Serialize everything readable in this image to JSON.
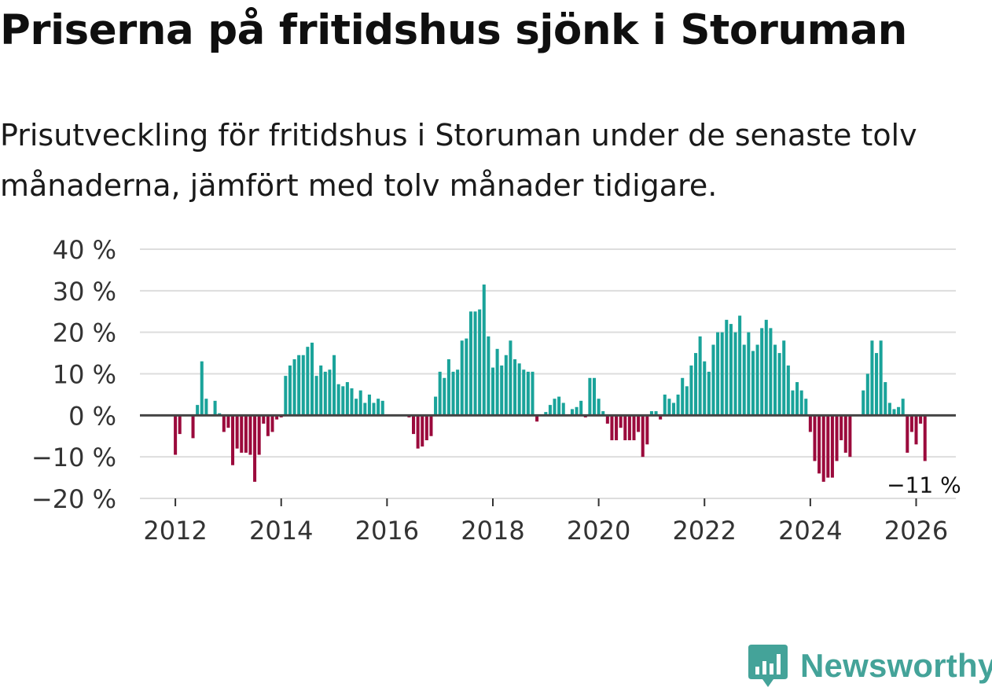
{
  "title": "Priserna på fritidshus sjönk i Storuman",
  "subtitle": "Prisutveckling för fritidshus i Storuman under de senaste tolv månaderna, jämfört med tolv månader tidigare.",
  "brand": {
    "name": "Newsworthy",
    "icon": "newsworthy-logo-icon"
  },
  "colors": {
    "positive": "#1aa39a",
    "negative": "#9b0a3c",
    "grid": "#dddddd",
    "zero_line": "#444444"
  },
  "chart_data": {
    "type": "bar",
    "title": "Priserna på fritidshus sjönk i Storuman",
    "xlabel": "",
    "ylabel": "",
    "ylim": [
      -20,
      40
    ],
    "yticks": [
      -20,
      -10,
      0,
      10,
      20,
      30,
      40
    ],
    "ytick_labels": [
      "−20 %",
      "−10 %",
      "0 %",
      "10 %",
      "20 %",
      "30 %",
      "40 %"
    ],
    "xticks": [
      2012,
      2014,
      2016,
      2018,
      2020,
      2022,
      2024,
      2026
    ],
    "xtick_labels": [
      "2012",
      "2014",
      "2016",
      "2018",
      "2020",
      "2022",
      "2024",
      "2026"
    ],
    "xlim": [
      2011.33,
      2026.75
    ],
    "grid": true,
    "last_value_label": "−11 %",
    "series": [
      {
        "name": "Prisutveckling",
        "start_year": 2012,
        "start_month": 1,
        "values": [
          -9.5,
          -4.5,
          0,
          0,
          -5.5,
          2.5,
          13,
          4,
          0,
          3.5,
          0.5,
          -4,
          -3,
          -12,
          -8,
          -9,
          -9,
          -9.5,
          -16,
          -9.5,
          -2,
          -5,
          -4,
          -1,
          -0.5,
          9.5,
          12,
          13.5,
          14.5,
          14.5,
          16.5,
          17.5,
          9.5,
          12,
          10.5,
          11,
          14.5,
          7.5,
          7,
          8,
          6.5,
          4,
          6,
          3,
          5,
          3,
          4,
          3.5,
          0,
          0,
          0,
          0,
          0,
          -0.5,
          -4.5,
          -8,
          -7.5,
          -6,
          -5,
          4.5,
          10.5,
          9,
          13.5,
          10.5,
          11,
          18,
          18.5,
          25,
          25,
          25.5,
          31.5,
          19,
          11.5,
          16,
          12,
          14.5,
          18,
          13.5,
          12.5,
          11,
          10.5,
          10.5,
          -1.5,
          0,
          0.8,
          2.5,
          4,
          4.5,
          3,
          0,
          1.5,
          2,
          3.5,
          -0.5,
          9,
          9,
          4,
          1,
          -2,
          -6,
          -6,
          -3,
          -6,
          -6,
          -6,
          -4,
          -10,
          -7,
          1,
          1,
          -1,
          5,
          4,
          3,
          5,
          9,
          7,
          12,
          15,
          19,
          13,
          10.5,
          17,
          20,
          20,
          23,
          22,
          20,
          24,
          17,
          20,
          15.5,
          17,
          21,
          23,
          21,
          17,
          15,
          18,
          12,
          6,
          8,
          6,
          4,
          -4,
          -11,
          -14,
          -16,
          -15,
          -15,
          -11,
          -6,
          -9,
          -10,
          0,
          0,
          6,
          10,
          18,
          15,
          18,
          8,
          3,
          1.5,
          2,
          4,
          -9,
          -4,
          -7,
          -2,
          -11
        ]
      }
    ]
  }
}
